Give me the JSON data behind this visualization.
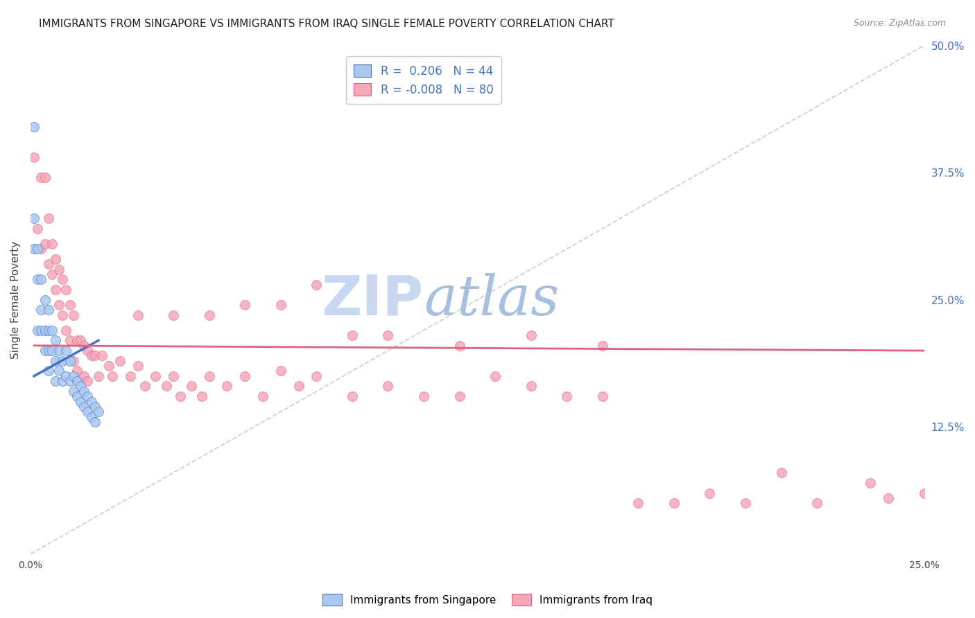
{
  "title": "IMMIGRANTS FROM SINGAPORE VS IMMIGRANTS FROM IRAQ SINGLE FEMALE POVERTY CORRELATION CHART",
  "source": "Source: ZipAtlas.com",
  "ylabel": "Single Female Poverty",
  "legend_singapore": "Immigrants from Singapore",
  "legend_iraq": "Immigrants from Iraq",
  "r_singapore": "0.206",
  "n_singapore": "44",
  "r_iraq": "-0.008",
  "n_iraq": "80",
  "color_singapore": "#a8c8f0",
  "color_iraq": "#f4a8b8",
  "color_singapore_line": "#4472c4",
  "color_iraq_line": "#e06080",
  "color_diag_line": "#c0c8d8",
  "xlim": [
    0.0,
    0.25
  ],
  "ylim": [
    0.0,
    0.5
  ],
  "singapore_x": [
    0.001,
    0.001,
    0.001,
    0.002,
    0.002,
    0.002,
    0.003,
    0.003,
    0.003,
    0.004,
    0.004,
    0.004,
    0.005,
    0.005,
    0.005,
    0.005,
    0.006,
    0.006,
    0.007,
    0.007,
    0.007,
    0.008,
    0.008,
    0.009,
    0.009,
    0.01,
    0.01,
    0.011,
    0.011,
    0.012,
    0.012,
    0.013,
    0.013,
    0.014,
    0.014,
    0.015,
    0.015,
    0.016,
    0.016,
    0.017,
    0.017,
    0.018,
    0.018,
    0.019
  ],
  "singapore_y": [
    0.42,
    0.33,
    0.3,
    0.3,
    0.27,
    0.22,
    0.27,
    0.24,
    0.22,
    0.25,
    0.22,
    0.2,
    0.24,
    0.22,
    0.2,
    0.18,
    0.22,
    0.2,
    0.21,
    0.19,
    0.17,
    0.2,
    0.18,
    0.19,
    0.17,
    0.2,
    0.175,
    0.19,
    0.17,
    0.175,
    0.16,
    0.17,
    0.155,
    0.165,
    0.15,
    0.16,
    0.145,
    0.155,
    0.14,
    0.15,
    0.135,
    0.145,
    0.13,
    0.14
  ],
  "iraq_x": [
    0.001,
    0.002,
    0.003,
    0.003,
    0.004,
    0.004,
    0.005,
    0.005,
    0.006,
    0.006,
    0.007,
    0.007,
    0.008,
    0.008,
    0.009,
    0.009,
    0.01,
    0.01,
    0.011,
    0.011,
    0.012,
    0.012,
    0.013,
    0.013,
    0.014,
    0.015,
    0.015,
    0.016,
    0.016,
    0.017,
    0.018,
    0.019,
    0.02,
    0.022,
    0.023,
    0.025,
    0.028,
    0.03,
    0.032,
    0.035,
    0.038,
    0.04,
    0.042,
    0.045,
    0.048,
    0.05,
    0.055,
    0.06,
    0.065,
    0.07,
    0.075,
    0.08,
    0.09,
    0.1,
    0.11,
    0.12,
    0.13,
    0.14,
    0.15,
    0.16,
    0.17,
    0.18,
    0.19,
    0.2,
    0.21,
    0.22,
    0.235,
    0.24,
    0.25,
    0.1,
    0.12,
    0.14,
    0.16,
    0.05,
    0.07,
    0.09,
    0.03,
    0.04,
    0.06,
    0.08
  ],
  "iraq_y": [
    0.39,
    0.32,
    0.37,
    0.3,
    0.37,
    0.305,
    0.33,
    0.285,
    0.305,
    0.275,
    0.29,
    0.26,
    0.28,
    0.245,
    0.27,
    0.235,
    0.26,
    0.22,
    0.245,
    0.21,
    0.235,
    0.19,
    0.21,
    0.18,
    0.21,
    0.205,
    0.175,
    0.2,
    0.17,
    0.195,
    0.195,
    0.175,
    0.195,
    0.185,
    0.175,
    0.19,
    0.175,
    0.185,
    0.165,
    0.175,
    0.165,
    0.175,
    0.155,
    0.165,
    0.155,
    0.175,
    0.165,
    0.175,
    0.155,
    0.18,
    0.165,
    0.175,
    0.155,
    0.165,
    0.155,
    0.155,
    0.175,
    0.165,
    0.155,
    0.155,
    0.05,
    0.05,
    0.06,
    0.05,
    0.08,
    0.05,
    0.07,
    0.055,
    0.06,
    0.215,
    0.205,
    0.215,
    0.205,
    0.235,
    0.245,
    0.215,
    0.235,
    0.235,
    0.245,
    0.265
  ],
  "sg_line_x": [
    0.001,
    0.019
  ],
  "sg_line_y": [
    0.175,
    0.21
  ],
  "iq_line_x": [
    0.001,
    0.25
  ],
  "iq_line_y": [
    0.205,
    0.2
  ],
  "background_color": "#ffffff",
  "grid_color": "#c8d4e8",
  "watermark_zip": "ZIP",
  "watermark_atlas": "atlas",
  "watermark_color_zip": "#c8d8f0",
  "watermark_color_atlas": "#a8c0e0"
}
